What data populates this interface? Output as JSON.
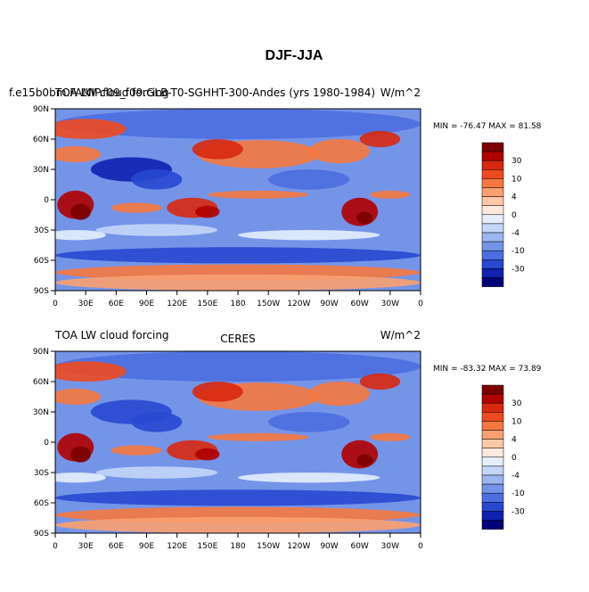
{
  "title": "DJF-JJA",
  "x_labels": [
    "0",
    "30E",
    "60E",
    "90E",
    "120E",
    "150E",
    "180",
    "150W",
    "120W",
    "90W",
    "60W",
    "30W",
    "0"
  ],
  "y_labels": [
    "90N",
    "60N",
    "30N",
    "0",
    "30S",
    "60S",
    "90S"
  ],
  "colorbar": {
    "labels": [
      30,
      10,
      4,
      0,
      -4,
      -10,
      -30
    ],
    "colors": [
      "#7a0000",
      "#b00000",
      "#d82810",
      "#ee4a20",
      "#f67840",
      "#fba070",
      "#fdc8a8",
      "#fdeadf",
      "#e6eefc",
      "#c4d6f8",
      "#9cb6f0",
      "#7494e8",
      "#4c6ee0",
      "#2848d0",
      "#1020b0",
      "#000078"
    ]
  },
  "panels": [
    {
      "left_string": "f.e15b0bm.FAMIP.f09_f09.GLB-T0-SGHHT-300-Andes (yrs 1980-1984)",
      "main_string": "TOA LW cloud forcing",
      "right_string": "W/m^2",
      "stats": "MIN = -76.47  MAX =  81.58"
    },
    {
      "left_string": "TOA LW cloud forcing",
      "center_string": "CERES",
      "right_string": "W/m^2",
      "stats": "MIN = -83.32  MAX =  73.89"
    }
  ]
}
